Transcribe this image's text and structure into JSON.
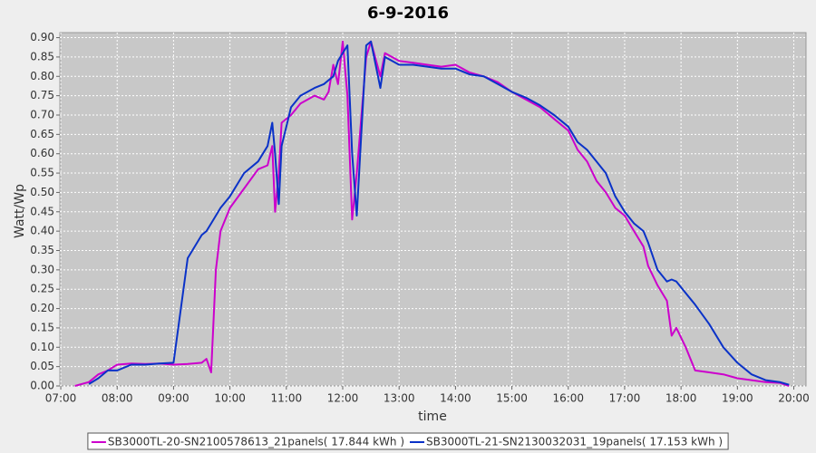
{
  "chart_data": {
    "type": "line",
    "title": "6-9-2016",
    "x_label": "time",
    "y_label": "Watt/Wp",
    "x": [
      "07:15",
      "07:30",
      "07:40",
      "07:50",
      "08:00",
      "08:15",
      "08:30",
      "08:45",
      "09:00",
      "09:15",
      "09:30",
      "09:35",
      "09:40",
      "09:45",
      "09:50",
      "10:00",
      "10:15",
      "10:30",
      "10:40",
      "10:45",
      "10:48",
      "10:52",
      "10:55",
      "11:05",
      "11:15",
      "11:30",
      "11:40",
      "11:45",
      "11:50",
      "11:55",
      "12:00",
      "12:05",
      "12:10",
      "12:15",
      "12:25",
      "12:30",
      "12:40",
      "12:45",
      "13:00",
      "13:15",
      "13:30",
      "13:45",
      "14:00",
      "14:15",
      "14:30",
      "14:45",
      "15:00",
      "15:15",
      "15:30",
      "15:45",
      "16:00",
      "16:10",
      "16:20",
      "16:30",
      "16:40",
      "16:50",
      "17:00",
      "17:10",
      "17:20",
      "17:25",
      "17:35",
      "17:45",
      "17:50",
      "17:55",
      "18:05",
      "18:15",
      "18:30",
      "18:45",
      "19:00",
      "19:15",
      "19:30",
      "19:45",
      "19:55"
    ],
    "series": [
      {
        "name": "SB3000TL-20-SN2100578613_21panels( 17.844 kWh )",
        "color": "#cc00cc",
        "values": [
          0.0,
          0.01,
          0.03,
          0.04,
          0.055,
          0.058,
          0.057,
          0.058,
          0.055,
          0.057,
          0.06,
          0.07,
          0.035,
          0.3,
          0.4,
          0.46,
          0.51,
          0.56,
          0.57,
          0.62,
          0.45,
          0.55,
          0.68,
          0.7,
          0.73,
          0.75,
          0.74,
          0.76,
          0.83,
          0.78,
          0.89,
          0.75,
          0.43,
          0.55,
          0.85,
          0.89,
          0.8,
          0.86,
          0.84,
          0.835,
          0.83,
          0.825,
          0.83,
          0.81,
          0.8,
          0.785,
          0.76,
          0.74,
          0.72,
          0.69,
          0.66,
          0.61,
          0.58,
          0.53,
          0.5,
          0.46,
          0.44,
          0.4,
          0.36,
          0.31,
          0.26,
          0.22,
          0.13,
          0.15,
          0.1,
          0.04,
          0.035,
          0.03,
          0.02,
          0.015,
          0.01,
          0.008,
          0.0
        ]
      },
      {
        "name": "SB3000TL-21-SN2130032031_19panels( 17.153 kWh )",
        "color": "#0a32c8",
        "values": [
          null,
          0.005,
          0.02,
          0.04,
          0.04,
          0.055,
          0.055,
          0.058,
          0.06,
          0.33,
          0.39,
          0.4,
          0.42,
          0.44,
          0.46,
          0.49,
          0.55,
          0.58,
          0.62,
          0.68,
          0.6,
          0.47,
          0.62,
          0.72,
          0.75,
          0.77,
          0.78,
          0.79,
          0.8,
          0.84,
          0.86,
          0.88,
          0.6,
          0.44,
          0.88,
          0.89,
          0.77,
          0.85,
          0.83,
          0.83,
          0.825,
          0.82,
          0.82,
          0.805,
          0.8,
          0.78,
          0.76,
          0.745,
          0.725,
          0.7,
          0.67,
          0.63,
          0.61,
          0.58,
          0.55,
          0.49,
          0.45,
          0.42,
          0.4,
          0.37,
          0.3,
          0.27,
          0.275,
          0.27,
          0.24,
          0.21,
          0.16,
          0.1,
          0.06,
          0.03,
          0.015,
          0.01,
          0.003
        ]
      }
    ],
    "xlim": [
      "06:59",
      "20:13"
    ],
    "xticks": [
      "07:00",
      "08:00",
      "09:00",
      "10:00",
      "11:00",
      "12:00",
      "13:00",
      "14:00",
      "15:00",
      "16:00",
      "17:00",
      "18:00",
      "19:00",
      "20:00"
    ],
    "ylim": [
      0,
      0.913
    ],
    "yticks": [
      {
        "value": 0,
        "label": "0.00"
      },
      {
        "value": 0.05,
        "label": "0.05"
      },
      {
        "value": 0.1,
        "label": "0.10"
      },
      {
        "value": 0.15,
        "label": "0.15"
      },
      {
        "value": 0.2,
        "label": "0.20"
      },
      {
        "value": 0.25,
        "label": "0.25"
      },
      {
        "value": 0.3,
        "label": "0.30"
      },
      {
        "value": 0.35,
        "label": "0.35"
      },
      {
        "value": 0.4,
        "label": "0.40"
      },
      {
        "value": 0.45,
        "label": "0.45"
      },
      {
        "value": 0.5,
        "label": "0.50"
      },
      {
        "value": 0.55,
        "label": "0.55"
      },
      {
        "value": 0.6,
        "label": "0.60"
      },
      {
        "value": 0.65,
        "label": "0.65"
      },
      {
        "value": 0.7,
        "label": "0.70"
      },
      {
        "value": 0.75,
        "label": "0.75"
      },
      {
        "value": 0.8,
        "label": "0.80"
      },
      {
        "value": 0.85,
        "label": "0.85"
      },
      {
        "value": 0.9,
        "label": "0.90"
      }
    ],
    "grid": true,
    "background": "#c8c8c8",
    "legend": "bottom"
  }
}
